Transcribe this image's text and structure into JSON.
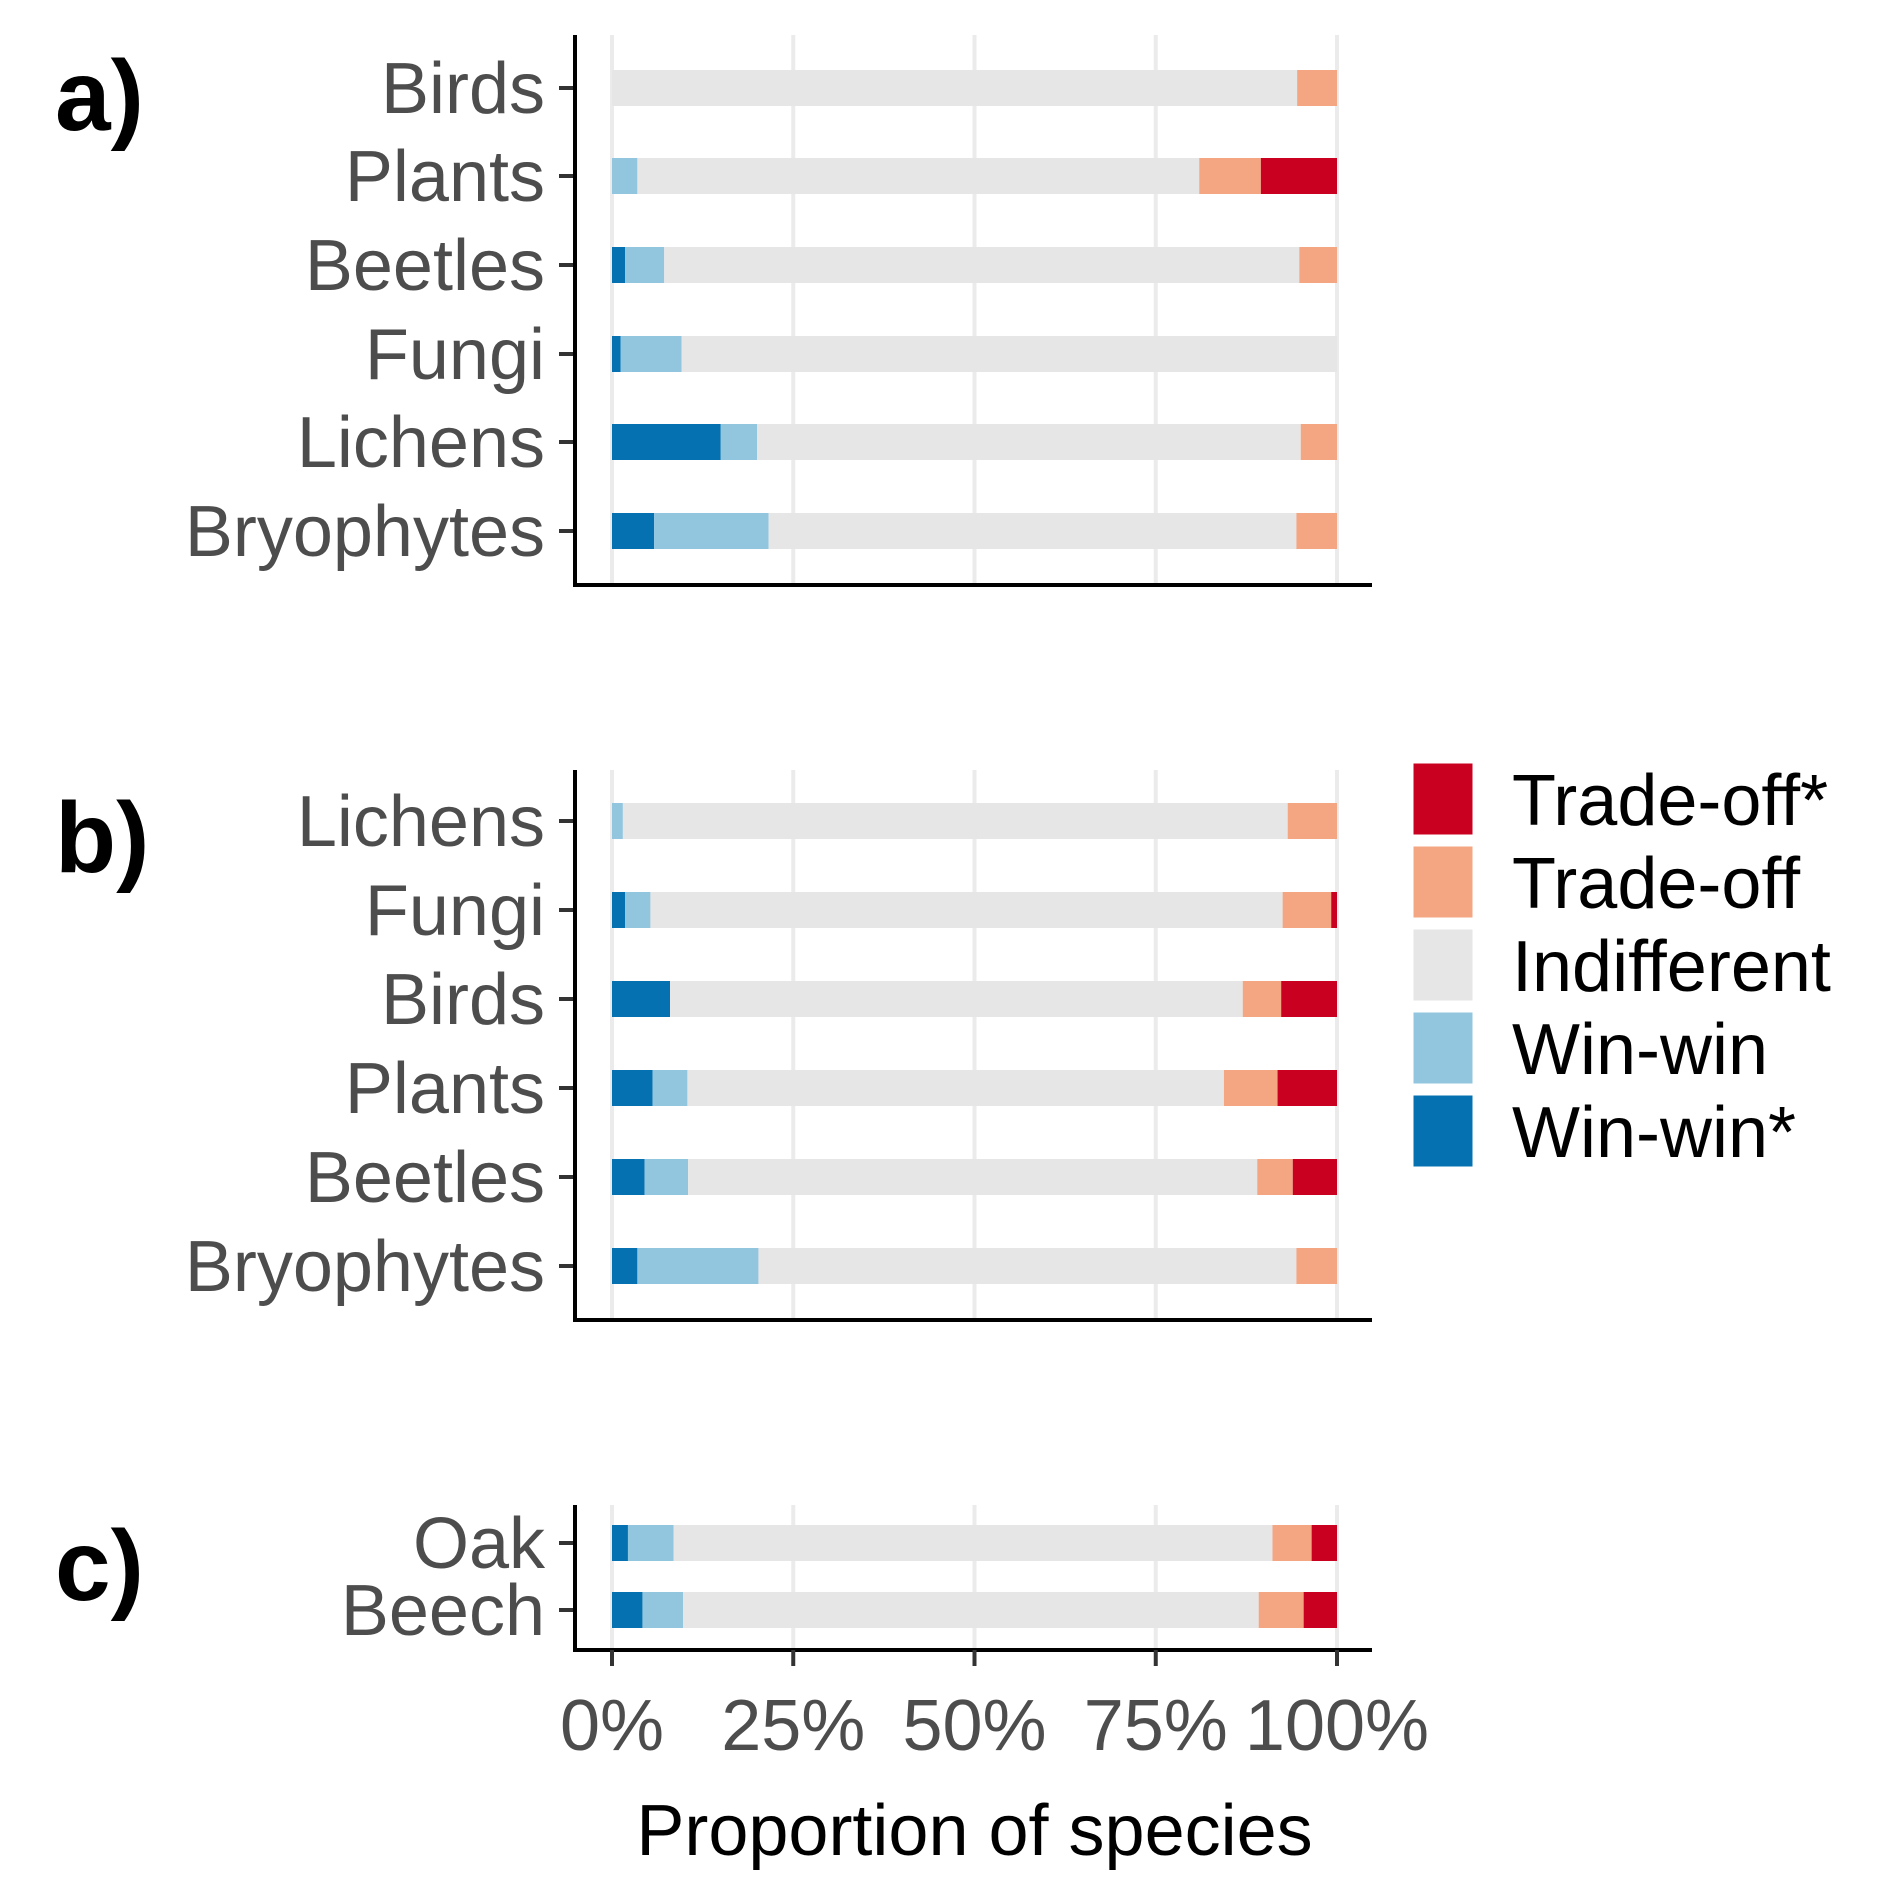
{
  "chart_data": {
    "type": "bar",
    "orientation": "horizontal",
    "stacked": true,
    "xlabel": "Proportion of species",
    "xlim": [
      0,
      100
    ],
    "x_ticks": [
      "0%",
      "25%",
      "50%",
      "75%",
      "100%"
    ],
    "x_tick_values": [
      0,
      25,
      50,
      75,
      100
    ],
    "grid": "vertical",
    "legend_position": "right",
    "series": [
      {
        "name": "Win-win*",
        "color": "#0571b0"
      },
      {
        "name": "Win-win",
        "color": "#92c5de"
      },
      {
        "name": "Indifferent",
        "color": "#e6e6e6"
      },
      {
        "name": "Trade-off",
        "color": "#f4a582"
      },
      {
        "name": "Trade-off*",
        "color": "#ca0020"
      }
    ],
    "legend_order": [
      "Trade-off*",
      "Trade-off",
      "Indifferent",
      "Win-win",
      "Win-win*"
    ],
    "panels": [
      {
        "label": "a)",
        "categories": [
          "Birds",
          "Plants",
          "Beetles",
          "Fungi",
          "Lichens",
          "Bryophytes"
        ],
        "values": [
          [
            0,
            0,
            94.5,
            5.5,
            0
          ],
          [
            0,
            3.5,
            77.5,
            8.5,
            10.5
          ],
          [
            1.8,
            5.4,
            87.6,
            5.2,
            0
          ],
          [
            1.2,
            8.4,
            90.4,
            0,
            0
          ],
          [
            15,
            5,
            75,
            5,
            0
          ],
          [
            5.8,
            15.8,
            72.8,
            5.6,
            0
          ]
        ]
      },
      {
        "label": "b)",
        "categories": [
          "Lichens",
          "Fungi",
          "Birds",
          "Plants",
          "Beetles",
          "Bryophytes"
        ],
        "values": [
          [
            0,
            1.5,
            91.7,
            6.8,
            0
          ],
          [
            1.8,
            3.5,
            87.2,
            6.7,
            0.8
          ],
          [
            8,
            0,
            79,
            5.3,
            7.7
          ],
          [
            5.6,
            4.8,
            74,
            7.4,
            8.2
          ],
          [
            4.5,
            6,
            78.5,
            4.9,
            6.1
          ],
          [
            3.5,
            16.7,
            74.2,
            5.6,
            0
          ]
        ]
      },
      {
        "label": "c)",
        "categories": [
          "Oak",
          "Beech"
        ],
        "values": [
          [
            2.2,
            6.3,
            82.6,
            5.4,
            3.5
          ],
          [
            4.2,
            5.6,
            79.4,
            6.2,
            4.6
          ]
        ]
      }
    ]
  }
}
